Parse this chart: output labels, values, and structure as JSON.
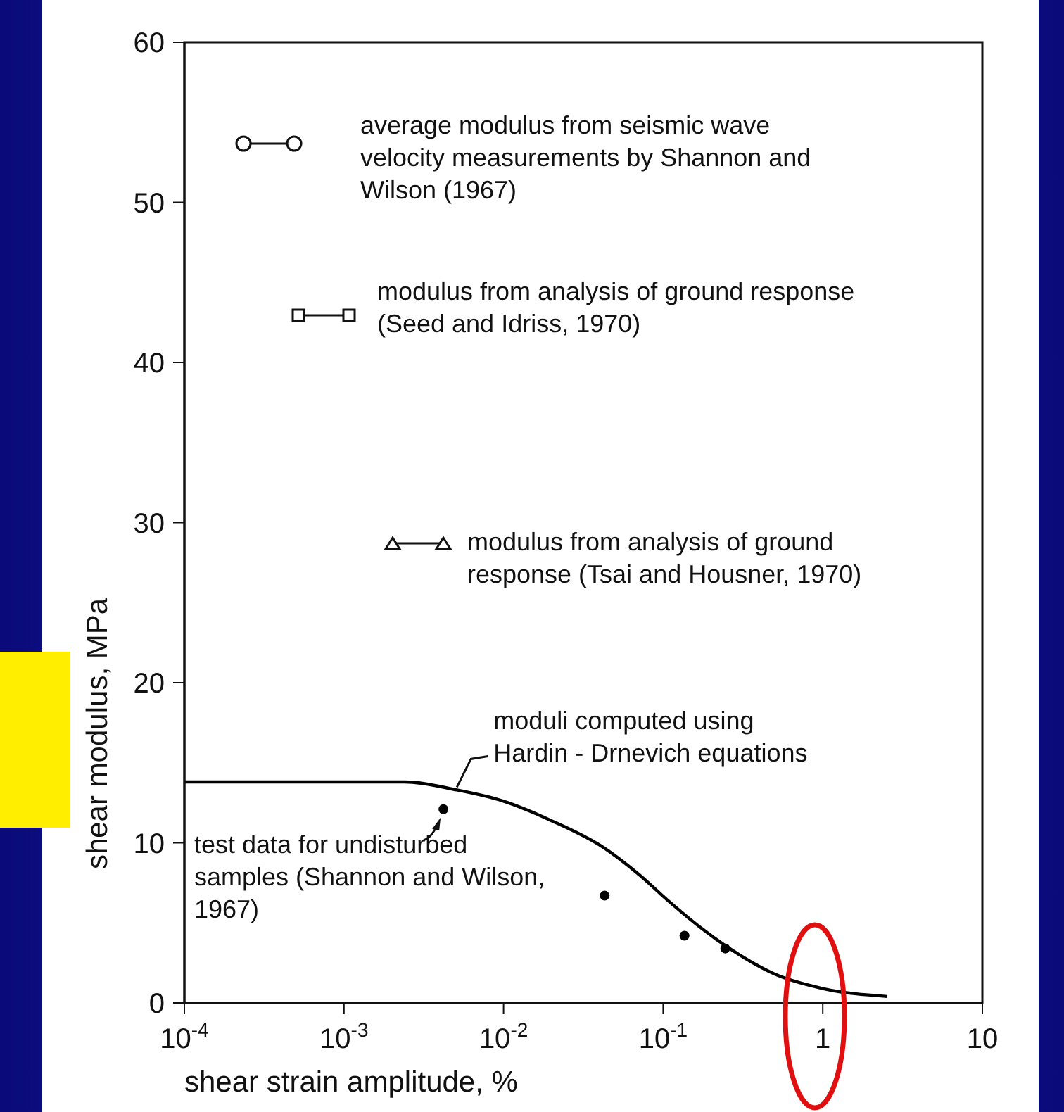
{
  "chart_data": {
    "type": "line",
    "xlabel": "shear strain amplitude, %",
    "ylabel": "shear modulus, MPa",
    "log": "x",
    "xlim": [
      0.0001,
      10
    ],
    "ylim": [
      0,
      60
    ],
    "xticks": [
      {
        "value": 0.0001,
        "label": "10$^{-4}$"
      },
      {
        "value": 0.001,
        "label": "10$^{-3}$"
      },
      {
        "value": 0.01,
        "label": "10$^{-2}$"
      },
      {
        "value": 0.1,
        "label": "10$^{-1}$"
      },
      1,
      10
    ],
    "yticks": [
      0,
      10,
      20,
      30,
      40,
      50,
      60
    ],
    "series": [
      {
        "color": "#000000",
        "marker": "none",
        "x": [
          0.0001,
          0.0024,
          0.0051,
          0.01,
          0.0198,
          0.0424,
          0.0709,
          0.107,
          0.177,
          0.27,
          0.5,
          1.0,
          2.53
        ],
        "values": [
          13.8,
          13.8,
          13.3,
          12.6,
          11.4,
          9.7,
          8.0,
          6.4,
          4.6,
          3.3,
          1.8,
          0.9,
          0.4
        ]
      },
      {
        "type": "scatter",
        "color": "#000000",
        "marker": "circle",
        "x": [
          0.0042,
          0.043,
          0.136,
          0.245
        ],
        "values": [
          12.1,
          6.7,
          4.2,
          3.4
        ]
      }
    ],
    "annotations": [
      "average modulus from seismic wave velocity measurements by Shannon and Wilson (1967)",
      "modulus from analysis of ground response (Seed and Idriss, 1970)",
      "modulus from analysis of ground response (Tsai and Housner, 1970)",
      {
        "text": "moduli computed using Hardin - Drnevich equations",
        "x": 0.0051,
        "y": 13.3
      },
      {
        "text": "test data for undisturbed samples (Shannon and Wilson, 1967)",
        "x": 0.0042,
        "y": 12.1
      }
    ]
  }
}
